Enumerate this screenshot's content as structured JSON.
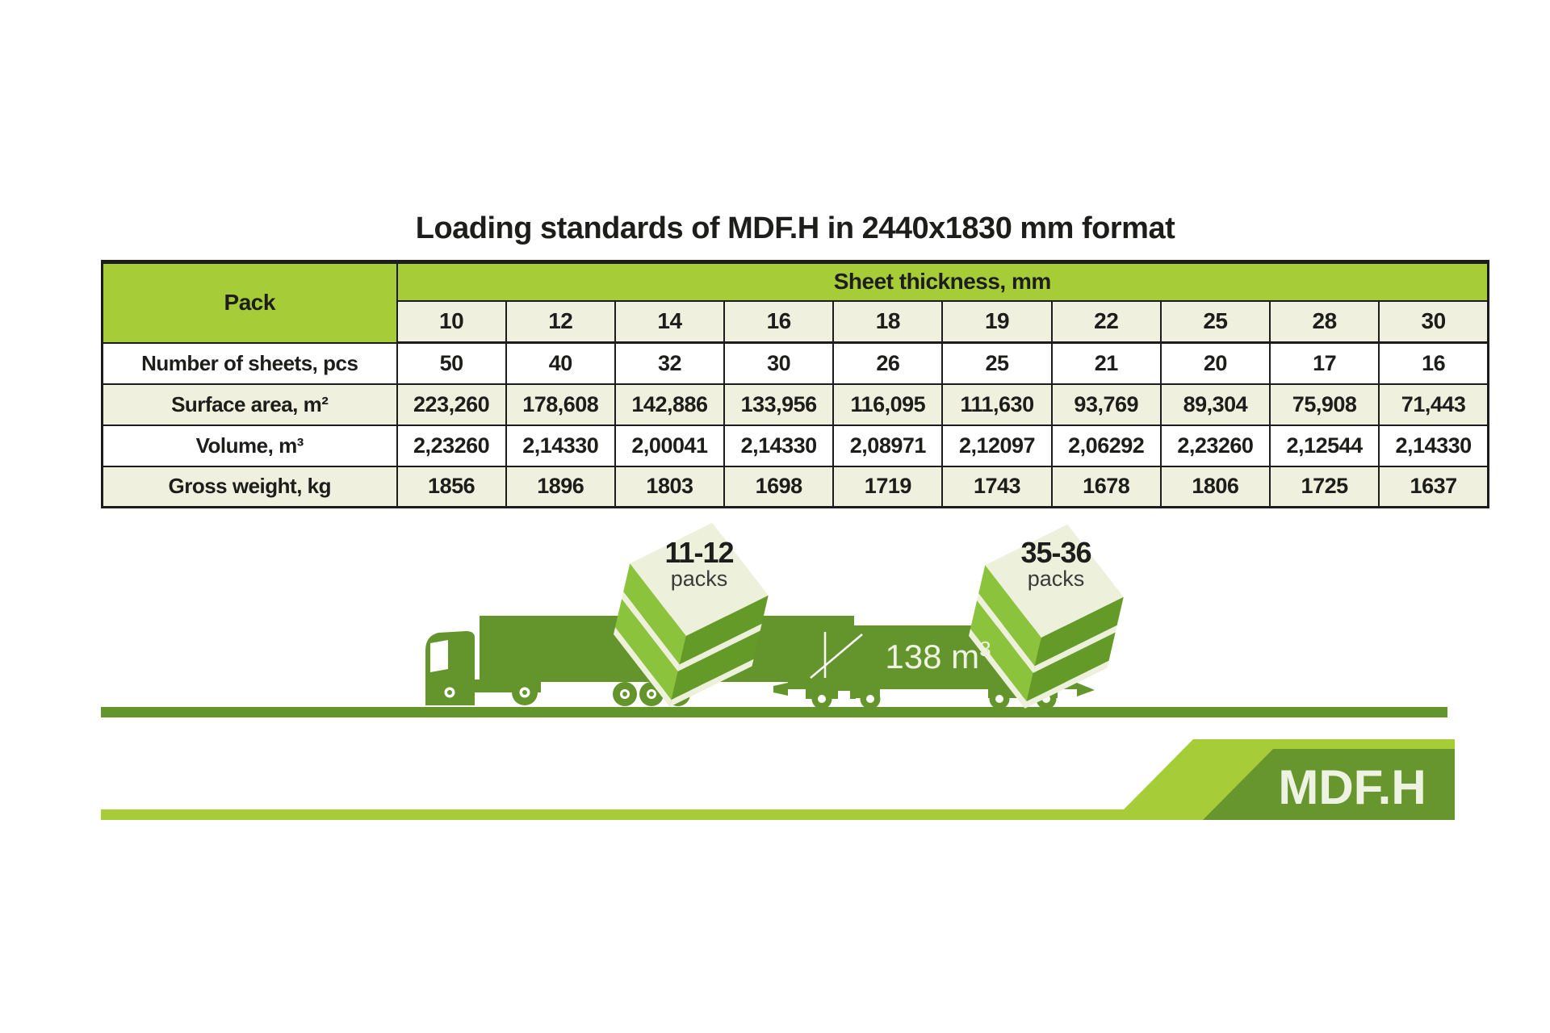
{
  "title": "Loading standards of MDF.H in 2440x1830 mm format",
  "table": {
    "pack_label": "Pack",
    "thickness_header": "Sheet thickness, mm",
    "thicknesses": [
      "10",
      "12",
      "14",
      "16",
      "18",
      "19",
      "22",
      "25",
      "28",
      "30"
    ],
    "rows": [
      {
        "label": "Number of sheets, pcs",
        "values": [
          "50",
          "40",
          "32",
          "30",
          "26",
          "25",
          "21",
          "20",
          "17",
          "16"
        ]
      },
      {
        "label": "Surface area, m²",
        "values": [
          "223,260",
          "178,608",
          "142,886",
          "133,956",
          "116,095",
          "111,630",
          "93,769",
          "89,304",
          "75,908",
          "71,443"
        ]
      },
      {
        "label": "Volume, m³",
        "values": [
          "2,23260",
          "2,14330",
          "2,00041",
          "2,14330",
          "2,08971",
          "2,12097",
          "2,06292",
          "2,23260",
          "2,12544",
          "2,14330"
        ]
      },
      {
        "label": "Gross weight, kg",
        "values": [
          "1856",
          "1896",
          "1803",
          "1698",
          "1719",
          "1743",
          "1678",
          "1806",
          "1725",
          "1637"
        ]
      }
    ]
  },
  "figure": {
    "truck_load": {
      "range": "11-12",
      "unit": "packs"
    },
    "wagon_load": {
      "range": "35-36",
      "unit": "packs"
    },
    "wagon_volume": {
      "value": "138 m",
      "sup": "3"
    }
  },
  "logo": {
    "text": "MDF.H"
  },
  "colors": {
    "bright_green": "#a6cc38",
    "dark_green": "#63952c",
    "logo_dark_green": "#68962e",
    "cream": "#eff1de",
    "pack_cream": "#edf0da",
    "pack_light": "#8cc33c",
    "pack_dark": "#649a28",
    "ink": "#1d1d1b"
  }
}
